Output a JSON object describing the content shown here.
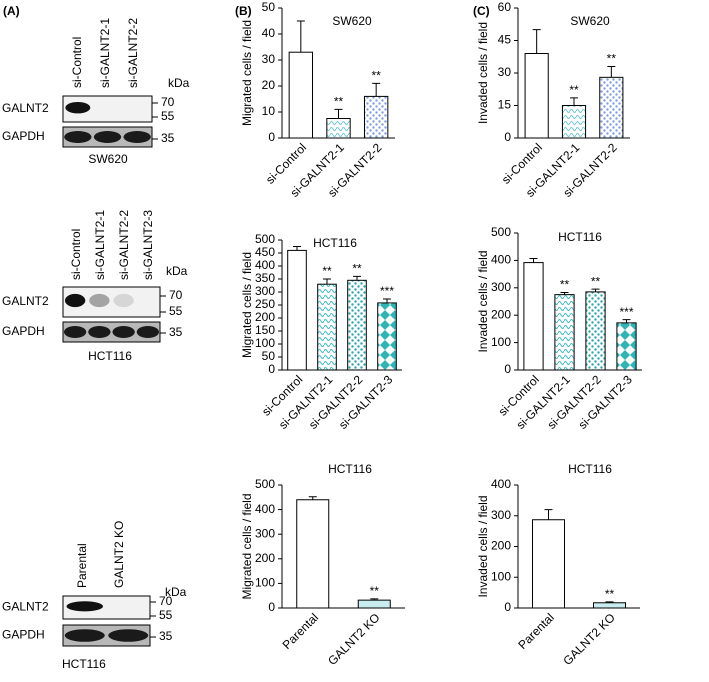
{
  "panel_labels": [
    "(A)",
    "(B)",
    "(C)"
  ],
  "blots": [
    {
      "lanes": [
        "si-Control",
        "si-GALNT2-1",
        "si-GALNT2-2"
      ],
      "proteins": [
        "GALNT2",
        "GAPDH"
      ],
      "unit": "kDa",
      "markers": [
        70,
        55,
        35
      ],
      "cell_line": "SW620"
    },
    {
      "lanes": [
        "si-Control",
        "si-GALNT2-1",
        "si-GALNT2-2",
        "si-GALNT2-3"
      ],
      "proteins": [
        "GALNT2",
        "GAPDH"
      ],
      "unit": "kDa",
      "markers": [
        70,
        55,
        35
      ],
      "cell_line": "HCT116"
    },
    {
      "lanes": [
        "Parental",
        "GALNT2 KO"
      ],
      "proteins": [
        "GALNT2",
        "GAPDH"
      ],
      "unit": "kDa",
      "markers": [
        70,
        55,
        35
      ],
      "cell_line": "HCT116"
    }
  ],
  "chart_data": [
    {
      "type": "bar",
      "title": "SW620",
      "y_label": "Migrated cells / field",
      "categories": [
        "si-Control",
        "si-GALNT2-1",
        "si-GALNT2-2"
      ],
      "values": [
        33,
        7.5,
        16
      ],
      "errors": [
        12,
        3.5,
        5
      ],
      "annotations": [
        null,
        "**",
        "**"
      ],
      "colors": [
        "#ffffff",
        "#6fc7d6",
        "#7f9fe0"
      ],
      "patterns": [
        null,
        "wave",
        "dots"
      ],
      "ylim": [
        0,
        50
      ],
      "yticks": [
        0,
        10,
        20,
        30,
        40,
        50
      ]
    },
    {
      "type": "bar",
      "title": "SW620",
      "y_label": "Invaded cells / field",
      "categories": [
        "si-Control",
        "si-GALNT2-1",
        "si-GALNT2-2"
      ],
      "values": [
        39,
        15,
        28
      ],
      "errors": [
        11,
        3.5,
        5
      ],
      "annotations": [
        null,
        "**",
        "**"
      ],
      "colors": [
        "#ffffff",
        "#6fc7d6",
        "#7f9fe0"
      ],
      "patterns": [
        null,
        "wave",
        "dots"
      ],
      "ylim": [
        0,
        60
      ],
      "yticks": [
        0,
        15,
        30,
        45,
        60
      ]
    },
    {
      "type": "bar",
      "title": "HCT116",
      "y_label": "Migrated cells / field",
      "categories": [
        "si-Control",
        "si-GALNT2-1",
        "si-GALNT2-2",
        "si-GALNT2-3"
      ],
      "values": [
        460,
        330,
        345,
        258
      ],
      "errors": [
        15,
        20,
        15,
        15
      ],
      "annotations": [
        null,
        "**",
        "**",
        "***"
      ],
      "colors": [
        "#ffffff",
        "#3bb8c4",
        "#2aa8a8",
        "#2fb5b5"
      ],
      "patterns": [
        null,
        "wave",
        "dots",
        "checker"
      ],
      "ylim": [
        0,
        500
      ],
      "yticks": [
        0,
        50,
        100,
        150,
        200,
        250,
        300,
        350,
        400,
        450,
        500
      ]
    },
    {
      "type": "bar",
      "title": "HCT116",
      "y_label": "Invaded cells / field",
      "categories": [
        "si-Control",
        "si-GALNT2-1",
        "si-GALNT2-2",
        "si-GALNT2-3"
      ],
      "values": [
        392,
        275,
        285,
        172
      ],
      "errors": [
        15,
        8,
        10,
        12
      ],
      "annotations": [
        null,
        "**",
        "**",
        "***"
      ],
      "colors": [
        "#ffffff",
        "#3bb8c4",
        "#2aa8a8",
        "#2fb5b5"
      ],
      "patterns": [
        null,
        "wave",
        "dots",
        "checker"
      ],
      "ylim": [
        0,
        500
      ],
      "yticks": [
        0,
        100,
        200,
        300,
        400,
        500
      ]
    },
    {
      "type": "bar",
      "title": "HCT116",
      "y_label": "Migrated cells / field",
      "categories": [
        "Parental",
        "GALNT2 KO"
      ],
      "values": [
        440,
        32
      ],
      "errors": [
        12,
        5
      ],
      "annotations": [
        null,
        "**"
      ],
      "colors": [
        "#ffffff",
        "#c8ecef"
      ],
      "patterns": [
        null,
        null
      ],
      "ylim": [
        0,
        500
      ],
      "yticks": [
        0,
        100,
        200,
        300,
        400,
        500
      ]
    },
    {
      "type": "bar",
      "title": "HCT116",
      "y_label": "Invaded cells / field",
      "categories": [
        "Parental",
        "GALNT2 KO"
      ],
      "values": [
        287,
        17
      ],
      "errors": [
        33,
        3
      ],
      "annotations": [
        null,
        "**"
      ],
      "colors": [
        "#ffffff",
        "#c8ecef"
      ],
      "patterns": [
        null,
        null
      ],
      "ylim": [
        0,
        400
      ],
      "yticks": [
        0,
        100,
        200,
        300,
        400
      ]
    }
  ]
}
